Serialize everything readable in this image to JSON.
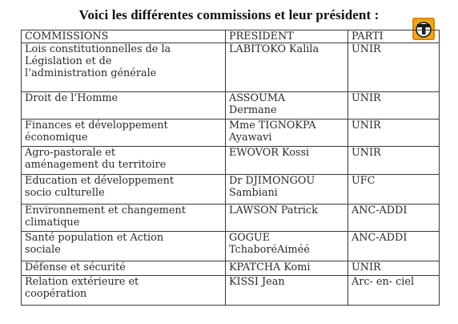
{
  "title": "Voici les différentes commissions et leur président :",
  "logo": {
    "icon": "t-logo-icon",
    "letter": "T",
    "color": "#f2a71b"
  },
  "table": {
    "headers": [
      "COMMISSIONS",
      "PRESIDENT",
      "PARTI"
    ],
    "rows": [
      {
        "commission": "Lois constitutionnelles de la\nLégislation et de\nl’administration générale",
        "president": "LABITOKO Kalila",
        "parti": "UNIR"
      },
      {
        "commission": "Droit de l’Homme",
        "president": "ASSOUMA\nDermane",
        "parti": "UNIR"
      },
      {
        "commission": "Finances et développement\néconomique",
        "president": "Mme TIGNOKPA\nAyawavi",
        "parti": "UNIR"
      },
      {
        "commission": "Agro-pastorale et\naménagement du territoire",
        "president": "EWOVOR Kossi",
        "parti": "UNIR"
      },
      {
        "commission": "Education et développement\nsocio culturelle",
        "president": "Dr DJIMONGOU\nSambiani",
        "parti": "UFC"
      },
      {
        "commission": "Environnement et changement\nclimatique",
        "president": "LAWSON Patrick",
        "parti": "ANC-ADDI"
      },
      {
        "commission": "Santé population et Action\nsociale",
        "president": "GOGUE\nTchaboréAiméé",
        "parti": "ANC-ADDI"
      },
      {
        "commission": "Défense et sécurité",
        "president": "KPATCHA Komi",
        "parti": "UNIR"
      },
      {
        "commission": "Relation extérieure et\ncoopération",
        "president": "KISSI Jean",
        "parti": "Arc- en- ciel"
      }
    ]
  }
}
